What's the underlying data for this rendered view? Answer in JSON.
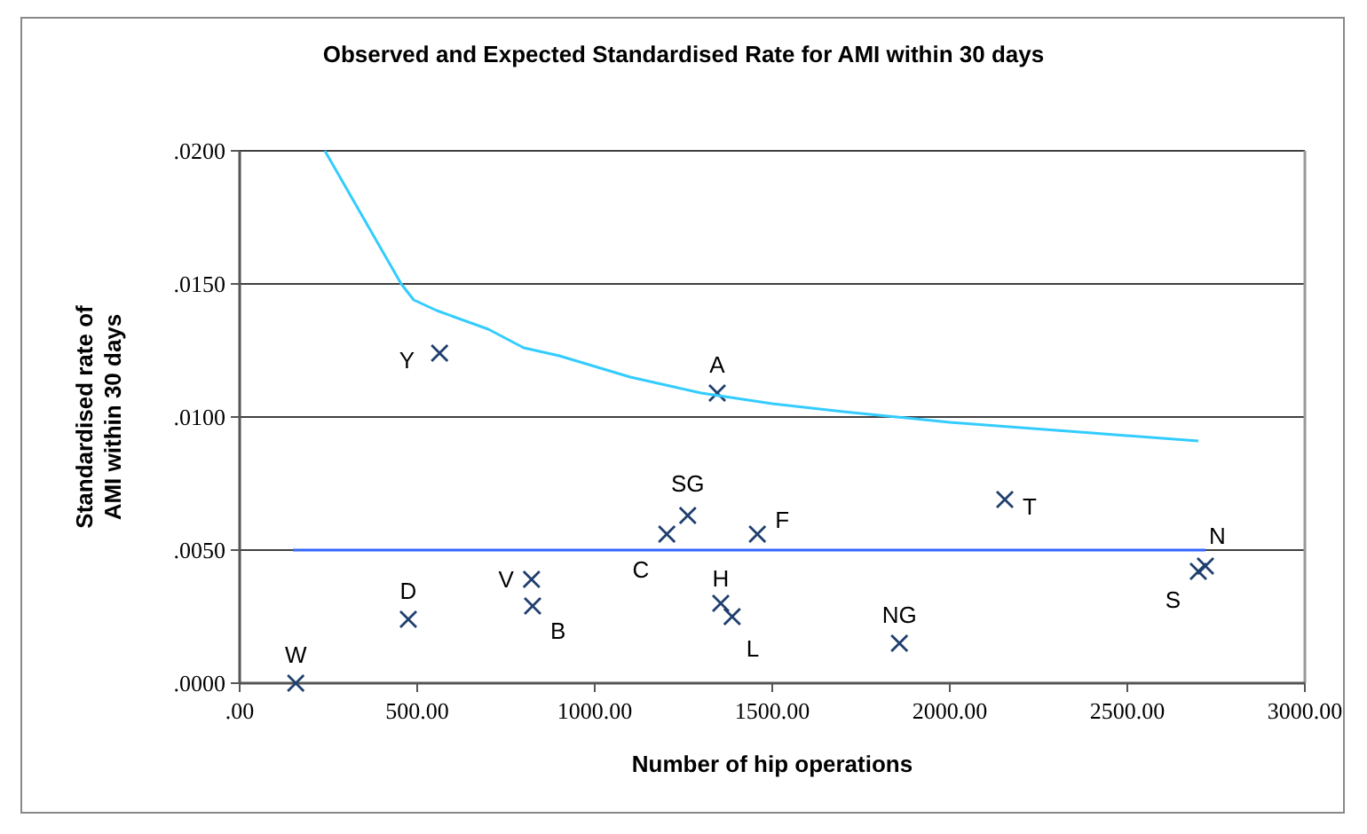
{
  "chart_data": {
    "type": "scatter",
    "title": "Observed and Expected Standardised Rate for AMI within 30 days",
    "xlabel": "Number of hip operations",
    "ylabel": "Standardised rate of AMI within 30 days",
    "xlim": [
      0,
      3000
    ],
    "xticks": [
      {
        "value": 0,
        "label": ".00"
      },
      {
        "value": 500,
        "label": "500.00"
      },
      {
        "value": 1000,
        "label": "1000.00"
      },
      {
        "value": 1500,
        "label": "1500.00"
      },
      {
        "value": 2000,
        "label": "2000.00"
      },
      {
        "value": 2500,
        "label": "2500.00"
      },
      {
        "value": 3000,
        "label": "3000.00"
      }
    ],
    "ylim": [
      0,
      0.02
    ],
    "yticks": [
      {
        "value": 0,
        "label": ".0000"
      },
      {
        "value": 0.005,
        "label": ".0050"
      },
      {
        "value": 0.01,
        "label": ".0100"
      },
      {
        "value": 0.015,
        "label": ".0150"
      },
      {
        "value": 0.02,
        "label": ".0200"
      }
    ],
    "grid": "y",
    "series": [
      {
        "color": "#1f3f6e",
        "marker": "cross",
        "x": [
          158,
          475,
          563,
          822,
          825,
          1203,
          1262,
          1345,
          1458,
          1355,
          1387,
          1858,
          2155,
          2720,
          2700
        ],
        "values": [
          0,
          0.0024,
          0.0124,
          0.0039,
          0.0029,
          0.0056,
          0.0063,
          0.0109,
          0.0056,
          0.003,
          0.0025,
          0.0015,
          0.0069,
          0.0044,
          0.0042
        ]
      },
      {
        "type": "line",
        "color": "#33ccff",
        "marker": "none",
        "x": [
          240,
          455,
          490,
          555,
          700,
          800,
          900,
          1000,
          1100,
          1200,
          1300,
          1400,
          1500,
          1700,
          1850,
          2000,
          2200,
          2400,
          2600,
          2700
        ],
        "values": [
          0.02,
          0.015,
          0.0144,
          0.014,
          0.0133,
          0.0126,
          0.0123,
          0.0119,
          0.0115,
          0.0112,
          0.0109,
          0.0107,
          0.0105,
          0.0102,
          0.01,
          0.0098,
          0.0096,
          0.0094,
          0.0092,
          0.0091
        ]
      },
      {
        "type": "line",
        "color": "#3366ff",
        "marker": "none",
        "x": [
          150,
          2720
        ],
        "values": [
          0.005,
          0.005
        ]
      }
    ],
    "annotations": [
      {
        "text": "W",
        "x": 158,
        "y": 0
      },
      {
        "text": "D",
        "x": 475,
        "y": 0.0024
      },
      {
        "text": "Y",
        "x": 563,
        "y": 0.0124
      },
      {
        "text": "V",
        "x": 822,
        "y": 0.0039
      },
      {
        "text": "B",
        "x": 825,
        "y": 0.0029
      },
      {
        "text": "C",
        "x": 1203,
        "y": 0.0056
      },
      {
        "text": "SG",
        "x": 1262,
        "y": 0.0063
      },
      {
        "text": "A",
        "x": 1345,
        "y": 0.0109
      },
      {
        "text": "F",
        "x": 1458,
        "y": 0.0056
      },
      {
        "text": "H",
        "x": 1355,
        "y": 0.003
      },
      {
        "text": "L",
        "x": 1387,
        "y": 0.0025
      },
      {
        "text": "NG",
        "x": 1858,
        "y": 0.0015
      },
      {
        "text": "T",
        "x": 2155,
        "y": 0.0069
      },
      {
        "text": "N",
        "x": 2720,
        "y": 0.0044
      },
      {
        "text": "S",
        "x": 2700,
        "y": 0.0042
      }
    ]
  }
}
